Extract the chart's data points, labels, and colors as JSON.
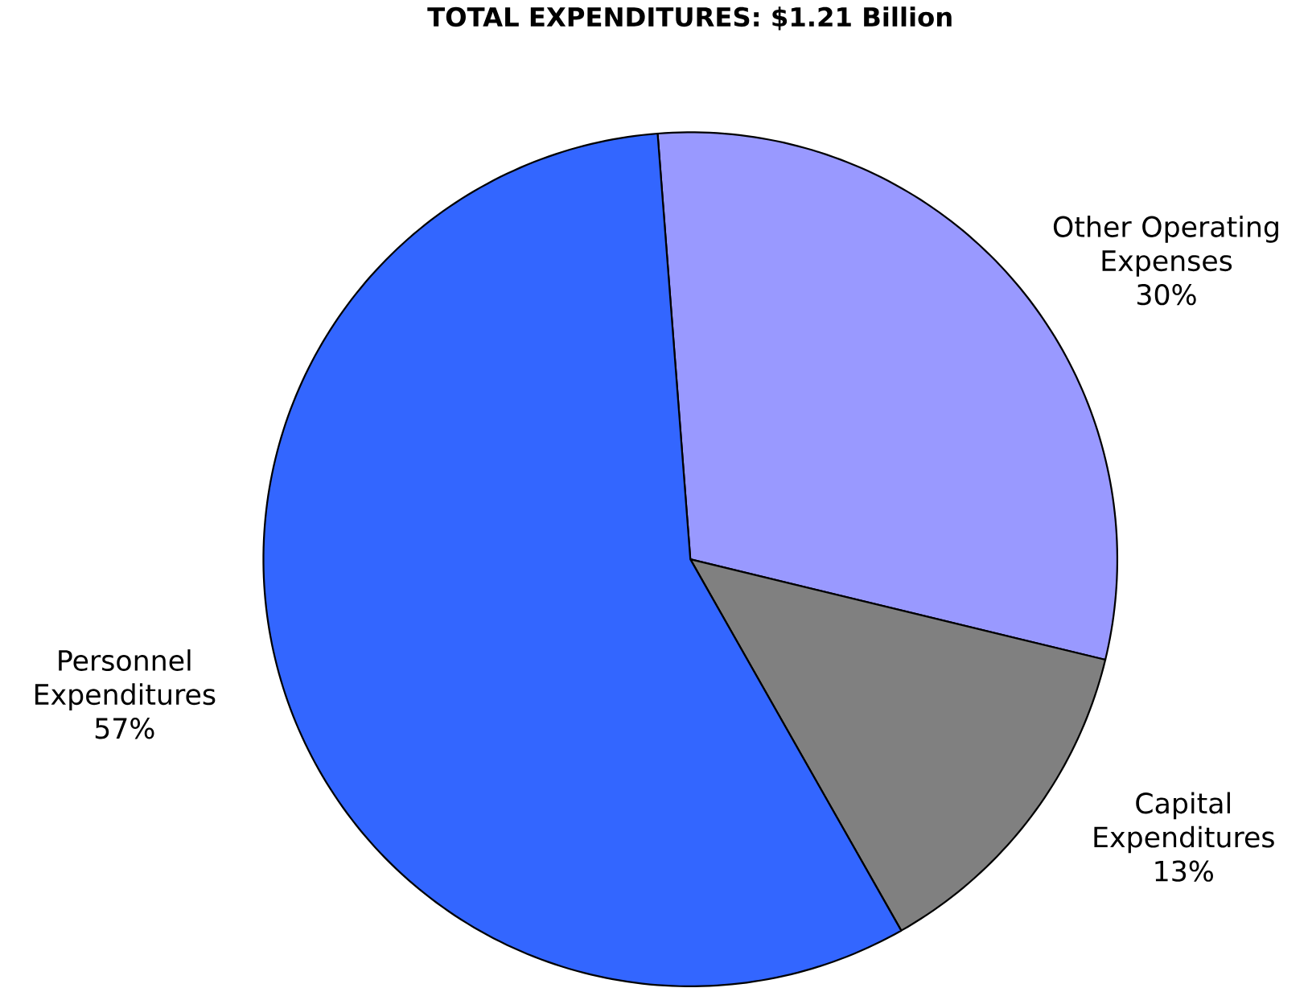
{
  "chart_data": {
    "type": "pie",
    "title": "TOTAL EXPENDITURES: $1.21 Billion",
    "categories": [
      "Other Operating Expenses",
      "Capital Expenditures",
      "Personnel Expenditures"
    ],
    "values": [
      30,
      13,
      57
    ],
    "value_labels": [
      "30%",
      "13%",
      "57%"
    ],
    "colors": [
      "#9999ff",
      "#808080",
      "#3366ff"
    ]
  }
}
